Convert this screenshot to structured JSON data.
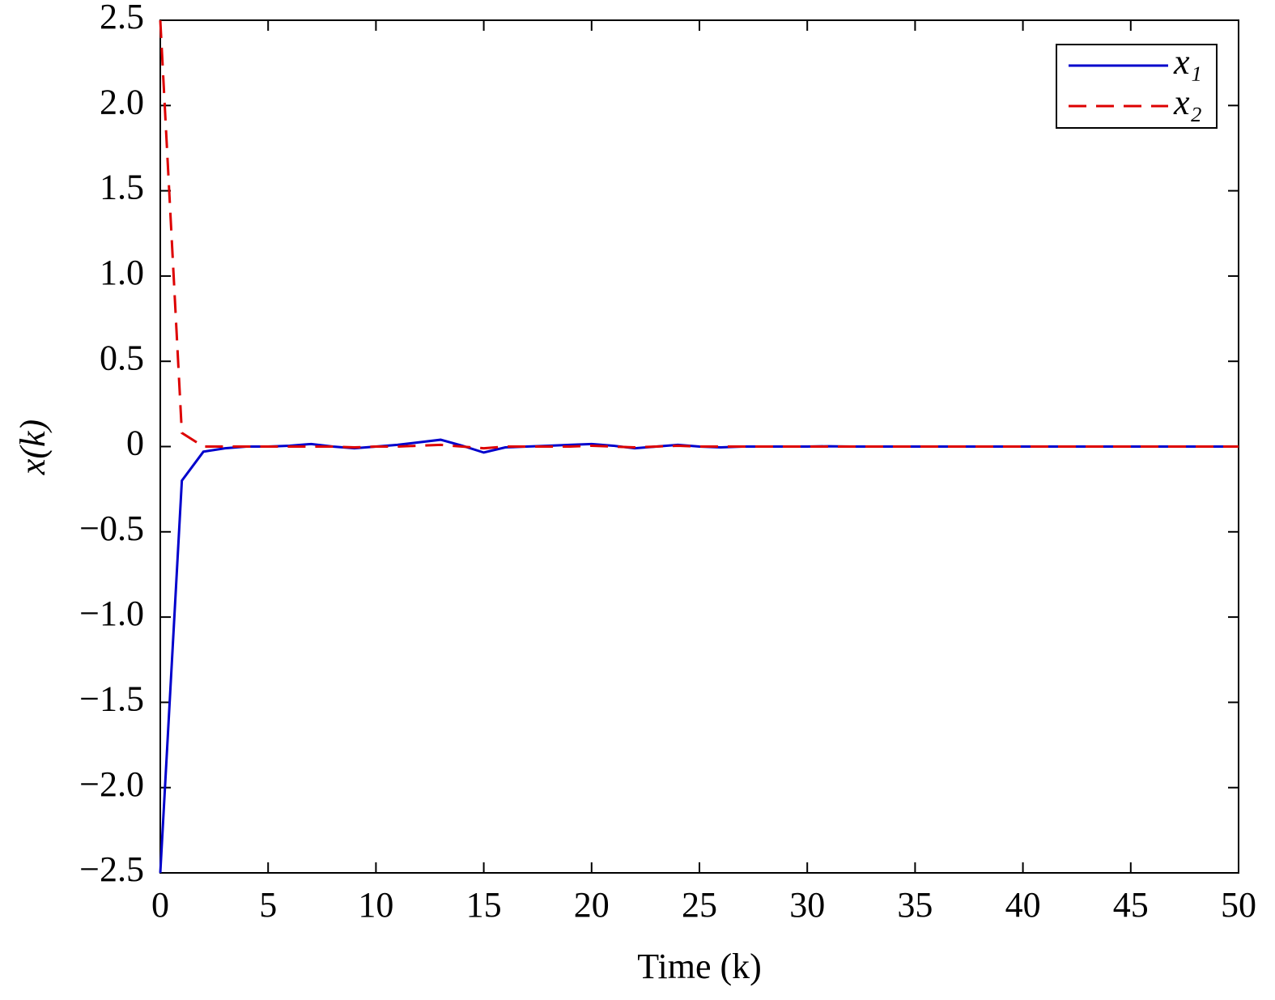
{
  "chart_data": {
    "type": "line",
    "xlabel": "Time (k)",
    "ylabel": "x(k)",
    "x": [
      0,
      1,
      2,
      3,
      4,
      5,
      6,
      7,
      8,
      9,
      10,
      11,
      12,
      13,
      14,
      15,
      16,
      17,
      18,
      19,
      20,
      21,
      22,
      23,
      24,
      25,
      26,
      27,
      28,
      29,
      30,
      31,
      32,
      33,
      34,
      35,
      36,
      37,
      38,
      39,
      40,
      41,
      42,
      43,
      44,
      45,
      46,
      47,
      48,
      49,
      50
    ],
    "series": [
      {
        "name": "x₁",
        "color": "#0000cc",
        "linestyle": "solid",
        "values": [
          -2.5,
          -0.2,
          -0.03,
          -0.01,
          0,
          0,
          0.005,
          0.015,
          0,
          -0.01,
          0,
          0.01,
          0.025,
          0.04,
          0.005,
          -0.035,
          -0.005,
          0,
          0.005,
          0.01,
          0.015,
          0.005,
          -0.01,
          0,
          0.01,
          0,
          -0.005,
          0,
          0,
          0,
          0,
          0.002,
          0,
          0,
          0,
          0,
          0,
          0,
          0,
          0,
          0,
          0,
          0,
          0,
          0,
          0,
          0,
          0,
          0,
          0,
          0
        ]
      },
      {
        "name": "x₂",
        "color": "#dd0000",
        "linestyle": "dashed",
        "values": [
          2.5,
          0.08,
          0,
          0,
          0,
          0,
          0,
          0,
          0,
          -0.005,
          0,
          0,
          0.005,
          0.01,
          0,
          -0.01,
          0,
          0,
          0,
          0,
          0.005,
          0,
          -0.005,
          0,
          0.005,
          0,
          0,
          0,
          0,
          0,
          0,
          0,
          0,
          0,
          0,
          0,
          0,
          0,
          0,
          0,
          0,
          0,
          0,
          0,
          0,
          0,
          0,
          0,
          0,
          0,
          0
        ]
      }
    ],
    "xlim": [
      0,
      50
    ],
    "xticks": [
      0,
      5,
      10,
      15,
      20,
      25,
      30,
      35,
      40,
      45,
      50
    ],
    "ylim": [
      -2.5,
      2.5
    ],
    "yticks": [
      {
        "value": -2.5,
        "label": "−2.5"
      },
      {
        "value": -2,
        "label": "−2.0"
      },
      {
        "value": -1.5,
        "label": "−1.5"
      },
      {
        "value": -1,
        "label": "−1.0"
      },
      {
        "value": -0.5,
        "label": "−0.5"
      },
      0,
      0.5,
      {
        "value": 1,
        "label": "1.0"
      },
      1.5,
      {
        "value": 2,
        "label": "2.0"
      },
      2.5
    ],
    "legend": "upper right"
  }
}
